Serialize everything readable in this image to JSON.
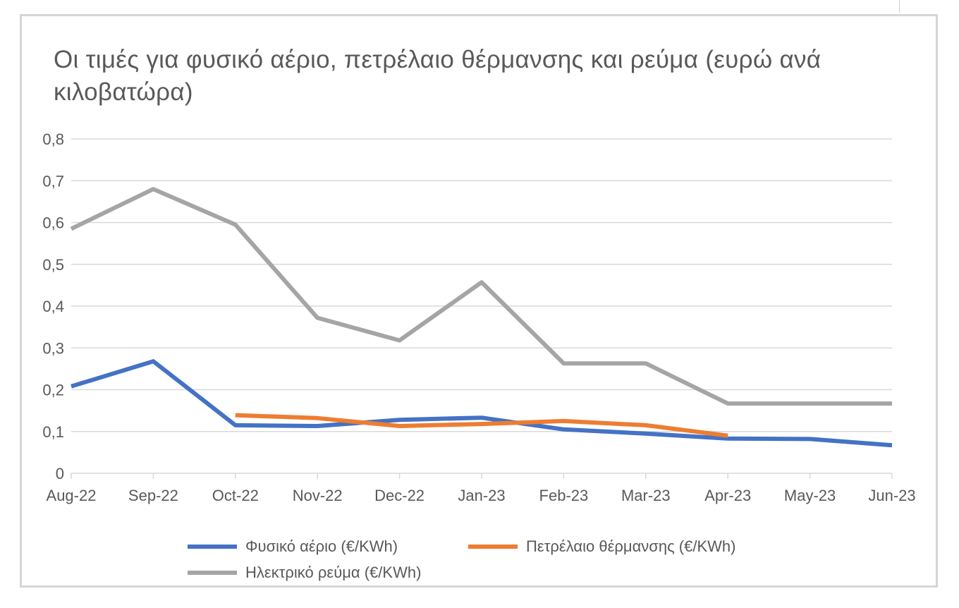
{
  "chart_data": {
    "type": "line",
    "title": "Οι τιμές για φυσικό αέριο, πετρέλαιο θέρμανσης και ρεύμα (ευρώ ανά κιλοβατώρα)",
    "categories": [
      "Aug-22",
      "Sep-22",
      "Oct-22",
      "Nov-22",
      "Dec-22",
      "Jan-23",
      "Feb-23",
      "Mar-23",
      "Apr-23",
      "May-23",
      "Jun-23"
    ],
    "ylim": [
      0,
      0.8
    ],
    "yticks": [
      "0",
      "0,1",
      "0,2",
      "0,3",
      "0,4",
      "0,5",
      "0,6",
      "0,7",
      "0,8"
    ],
    "grid": true,
    "legend_position": "bottom",
    "series": [
      {
        "name": "Φυσικό αέριο (€/KWh)",
        "color": "#4472C4",
        "values": [
          0.208,
          0.268,
          0.115,
          0.113,
          0.128,
          0.133,
          0.105,
          0.095,
          0.083,
          0.082,
          0.067
        ]
      },
      {
        "name": "Πετρέλαιο θέρμανσης (€/KWh)",
        "color": "#ED7D31",
        "values": [
          null,
          null,
          0.139,
          0.132,
          0.113,
          0.118,
          0.125,
          0.115,
          0.09,
          null,
          null
        ]
      },
      {
        "name": "Ηλεκτρικό ρεύμα (€/KWh)",
        "color": "#A5A5A5",
        "values": [
          0.585,
          0.68,
          0.595,
          0.372,
          0.318,
          0.457,
          0.263,
          0.263,
          0.167,
          0.167,
          0.167
        ]
      }
    ]
  }
}
